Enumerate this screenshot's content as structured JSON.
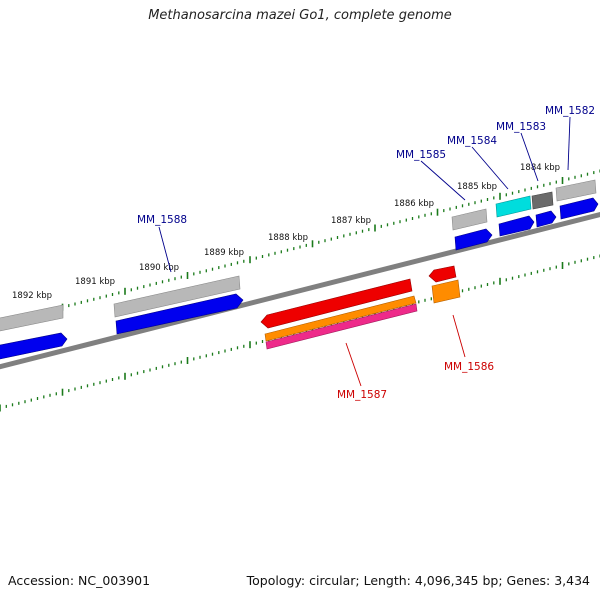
{
  "title": "Methanosarcina mazei Go1, complete genome",
  "footer": {
    "accession": "Accession: NC_003901",
    "summary": "Topology: circular; Length: 4,096,345 bp; Genes: 3,434"
  },
  "ruler": {
    "unit": "kbp",
    "ticks": [
      "1892 kbp",
      "1891 kbp",
      "1890 kbp",
      "1889 kbp",
      "1888 kbp",
      "1887 kbp",
      "1886 kbp",
      "1885 kbp",
      "1884 kbp"
    ]
  },
  "colors": {
    "backbone": "#808080",
    "ticks": "#1a7a1a",
    "forward_gene": "#0000ee",
    "gene_gray": "#b8b8b8",
    "gene_dark_gray": "#6a6a6a",
    "gene_cyan": "#00dddd",
    "gene_red": "#ee0000",
    "gene_orange": "#ff8c00",
    "gene_pink": "#ee2a8a",
    "label_blue": "#00008b",
    "label_red": "#cc0000"
  },
  "gene_labels": {
    "top": [
      "MM_1588",
      "MM_1585",
      "MM_1584",
      "MM_1583",
      "MM_1582"
    ],
    "bottom": [
      "MM_1587",
      "MM_1586"
    ]
  }
}
